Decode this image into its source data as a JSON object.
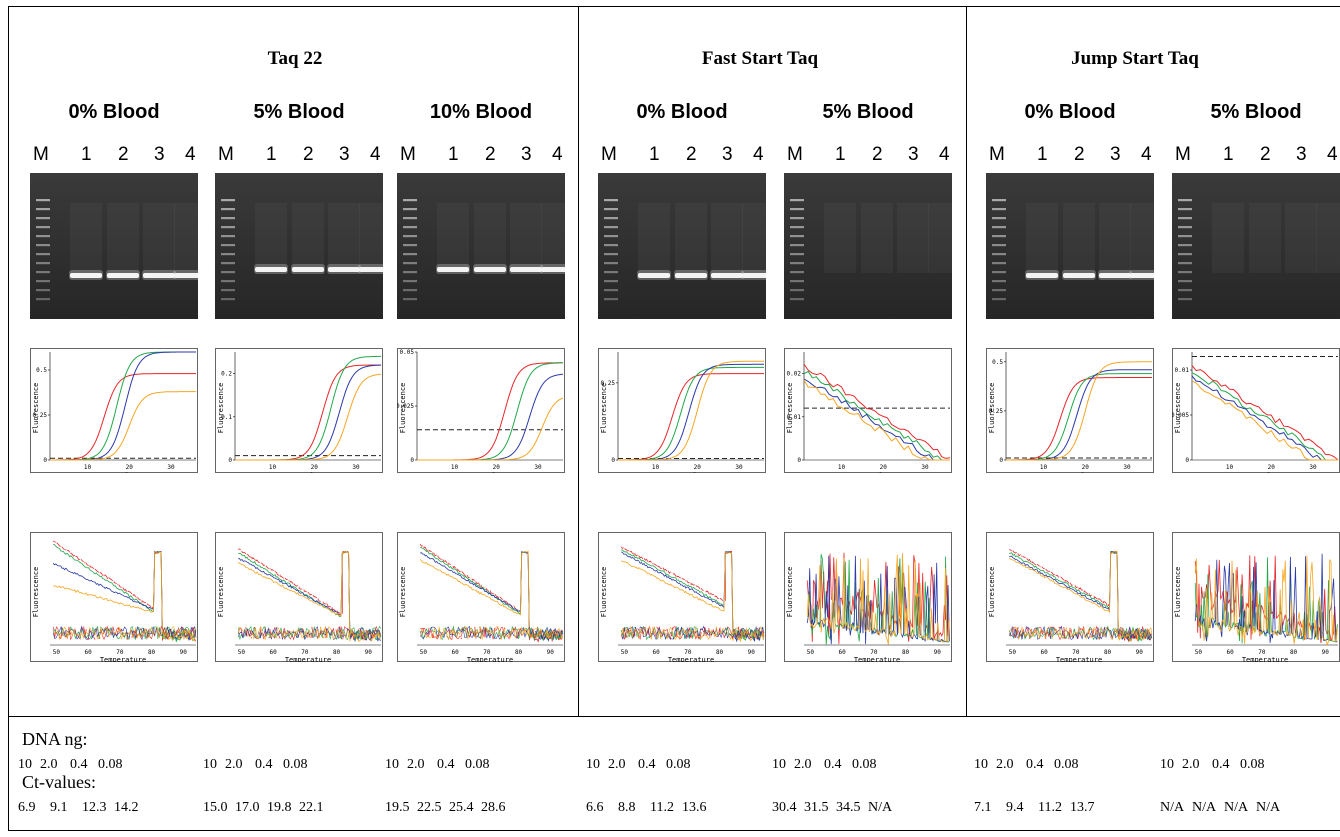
{
  "groups": [
    {
      "title": "Taq 22",
      "panels": [
        {
          "title": "0% Blood",
          "lanes": [
            "M",
            "1",
            "2",
            "3",
            "4"
          ],
          "gel_bands": [
            1,
            1,
            1,
            1
          ],
          "dna": [
            "10",
            "2.0",
            "0.4",
            "0.08"
          ],
          "ct": [
            "6.9",
            "9.1",
            "12.3",
            "14.2"
          ],
          "amp": {
            "ymax": 0.6,
            "yticks": [
              "0.5",
              "0.25",
              "0"
            ],
            "threshold": 0.01,
            "curves": [
              [
                14,
                0.48
              ],
              [
                17,
                0.6
              ],
              [
                19,
                0.6
              ],
              [
                20,
                0.38
              ]
            ]
          },
          "melt": {
            "peak": 82,
            "starts": [
              0.95,
              0.92,
              0.75,
              0.55
            ],
            "ends": [
              0.33,
              0.3,
              0.32,
              0.3
            ]
          }
        },
        {
          "title": "5% Blood",
          "lanes": [
            "M",
            "1",
            "2",
            "3",
            "4"
          ],
          "gel_bands": [
            1,
            1,
            1,
            1
          ],
          "dna": [
            "10",
            "2.0",
            "0.4",
            "0.08"
          ],
          "ct": [
            "15.0",
            "17.0",
            "19.8",
            "22.1"
          ],
          "amp": {
            "ymax": 0.25,
            "yticks": [
              "0.2",
              "0.1",
              "0"
            ],
            "threshold": 0.01,
            "curves": [
              [
                22,
                0.22
              ],
              [
                24,
                0.24
              ],
              [
                26,
                0.22
              ],
              [
                28,
                0.2
              ]
            ]
          },
          "melt": {
            "peak": 83,
            "starts": [
              0.88,
              0.85,
              0.8,
              0.75
            ],
            "ends": [
              0.28,
              0.25,
              0.27,
              0.26
            ]
          }
        },
        {
          "title": "10% Blood",
          "lanes": [
            "M",
            "1",
            "2",
            "3",
            "4"
          ],
          "gel_bands": [
            1,
            1,
            1,
            1
          ],
          "dna": [
            "10",
            "2.0",
            "0.4",
            "0.08"
          ],
          "ct": [
            "19.5",
            "22.5",
            "25.4",
            "28.6"
          ],
          "amp": {
            "ymax": 0.05,
            "yticks": [
              "0.05",
              "0.025",
              "0"
            ],
            "threshold": 0.014,
            "curves": [
              [
                22,
                0.045
              ],
              [
                25,
                0.045
              ],
              [
                28,
                0.04
              ],
              [
                31,
                0.03
              ]
            ]
          },
          "melt": {
            "peak": 82,
            "starts": [
              0.92,
              0.9,
              0.85,
              0.78
            ],
            "ends": [
              0.3,
              0.28,
              0.3,
              0.27
            ]
          }
        }
      ]
    },
    {
      "title": "Fast Start Taq",
      "panels": [
        {
          "title": "0% Blood",
          "lanes": [
            "M",
            "1",
            "2",
            "3",
            "4"
          ],
          "gel_bands": [
            1,
            1,
            1,
            1
          ],
          "dna": [
            "10",
            "2.0",
            "0.4",
            "0.08"
          ],
          "ct": [
            "6.6",
            "8.8",
            "11.2",
            "13.6"
          ],
          "amp": {
            "ymax": 0.35,
            "yticks": [
              "0.25",
              "0"
            ],
            "threshold": 0.005,
            "curves": [
              [
                14,
                0.28
              ],
              [
                16,
                0.3
              ],
              [
                18,
                0.31
              ],
              [
                20,
                0.32
              ]
            ]
          },
          "melt": {
            "peak": 83,
            "starts": [
              0.9,
              0.88,
              0.85,
              0.78
            ],
            "ends": [
              0.4,
              0.36,
              0.34,
              0.3
            ]
          }
        },
        {
          "title": "5% Blood",
          "lanes": [
            "M",
            "1",
            "2",
            "3",
            "4"
          ],
          "gel_bands": [
            0,
            0,
            0,
            0
          ],
          "dna": [
            "10",
            "2.0",
            "0.4",
            "0.08"
          ],
          "ct": [
            "30.4",
            "31.5",
            "34.5",
            "N/A"
          ],
          "amp": {
            "ymax": 0.025,
            "yticks": [
              "0.02",
              "0.01",
              "0"
            ],
            "threshold": 0.012
          },
          "melt": {
            "peak": 0
          }
        }
      ]
    },
    {
      "title": "Jump Start Taq",
      "panels": [
        {
          "title": "0% Blood",
          "lanes": [
            "M",
            "1",
            "2",
            "3",
            "4"
          ],
          "gel_bands": [
            1,
            1,
            1,
            1
          ],
          "dna": [
            "10",
            "2.0",
            "0.4",
            "0.08"
          ],
          "ct": [
            "7.1",
            "9.4",
            "11.2",
            "13.7"
          ],
          "amp": {
            "ymax": 0.55,
            "yticks": [
              "0.5",
              "0.25",
              "0"
            ],
            "threshold": 0.01,
            "curves": [
              [
                14,
                0.42
              ],
              [
                16,
                0.44
              ],
              [
                18,
                0.46
              ],
              [
                20,
                0.5
              ]
            ]
          },
          "melt": {
            "peak": 82,
            "starts": [
              0.88,
              0.85,
              0.82,
              0.8
            ],
            "ends": [
              0.36,
              0.34,
              0.32,
              0.3
            ]
          }
        },
        {
          "title": "5% Blood",
          "lanes": [
            "M",
            "1",
            "2",
            "3",
            "4"
          ],
          "gel_bands": [
            0,
            0,
            0,
            0
          ],
          "dna": [
            "10",
            "2.0",
            "0.4",
            "0.08"
          ],
          "ct": [
            "N/A",
            "N/A",
            "N/A",
            "N/A"
          ],
          "amp": {
            "ymax": 0.012,
            "yticks": [
              "0.01",
              "0.005",
              "0"
            ],
            "threshold": 0.0115
          },
          "melt": {
            "peak": 0
          }
        }
      ]
    }
  ],
  "axes": {
    "amp_xlabel": "Cycle",
    "amp_ylabel": "Fluorescence",
    "amp_xticks": [
      "10",
      "20",
      "30"
    ],
    "melt_xlabel": "Temperature",
    "melt_ylabel": "Fluorescence",
    "melt_xticks": [
      "50",
      "60",
      "70",
      "80",
      "90"
    ]
  },
  "footer": {
    "dna_label": "DNA ng:",
    "ct_label": "Ct-values:"
  },
  "colors": {
    "red": "#e8262a",
    "green": "#22a84a",
    "blue": "#2b3aa8",
    "orange": "#f5a623",
    "threshold": "#222222"
  }
}
